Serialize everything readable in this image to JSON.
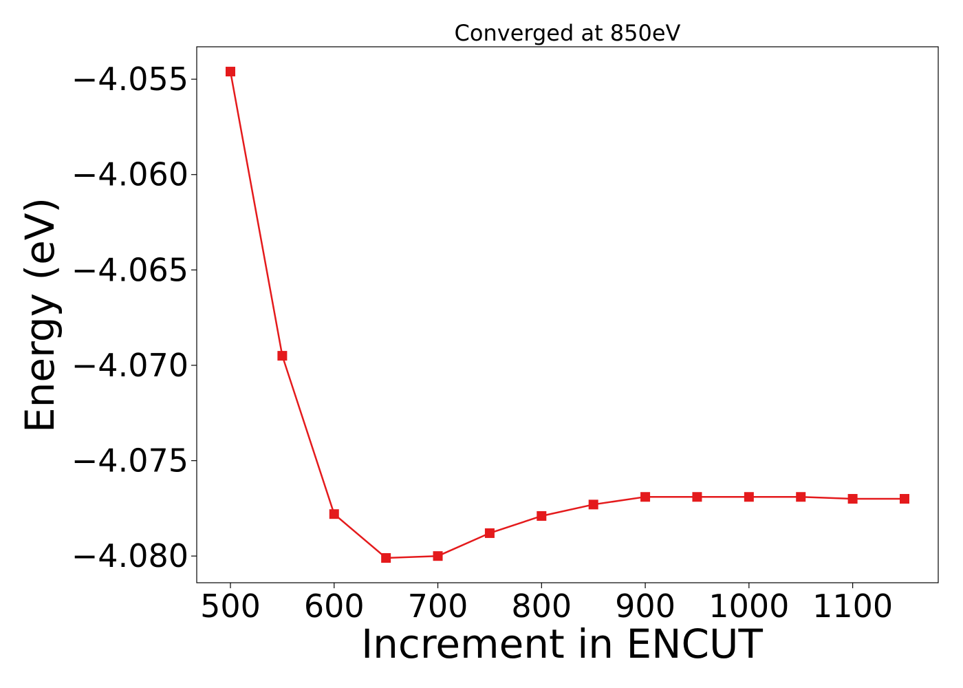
{
  "chart_data": {
    "type": "line",
    "title": "Converged at 850eV",
    "xlabel": "Increment in ENCUT",
    "ylabel": "Energy (eV)",
    "x": [
      500,
      550,
      600,
      650,
      700,
      750,
      800,
      850,
      900,
      950,
      1000,
      1050,
      1100,
      1150
    ],
    "series": [
      {
        "values": [
          -4.0546,
          -4.0695,
          -4.0778,
          -4.0801,
          -4.08,
          -4.0788,
          -4.0779,
          -4.0773,
          -4.0769,
          -4.0769,
          -4.0769,
          -4.0769,
          -4.077,
          -4.077
        ],
        "color": "#e41a1c",
        "marker": "square"
      }
    ],
    "xticks": [
      500,
      600,
      700,
      800,
      900,
      1000,
      1100
    ],
    "xtick_labels": [
      "500",
      "600",
      "700",
      "800",
      "900",
      "1000",
      "1100"
    ],
    "yticks": [
      -4.055,
      -4.06,
      -4.065,
      -4.07,
      -4.075,
      -4.08
    ],
    "ytick_labels": [
      "−4.055",
      "−4.060",
      "−4.065",
      "−4.070",
      "−4.075",
      "−4.080"
    ],
    "xlim": [
      467.5,
      1182.5
    ],
    "ylim": [
      -4.0814,
      -4.0533
    ],
    "grid": false,
    "legend": "none"
  }
}
